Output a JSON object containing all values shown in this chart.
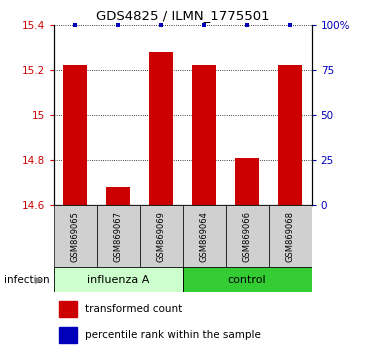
{
  "title": "GDS4825 / ILMN_1775501",
  "samples": [
    "GSM869065",
    "GSM869067",
    "GSM869069",
    "GSM869064",
    "GSM869066",
    "GSM869068"
  ],
  "transformed_counts": [
    15.22,
    14.68,
    15.28,
    15.22,
    14.81,
    15.22
  ],
  "percentile_ranks": [
    100,
    100,
    100,
    100,
    100,
    100
  ],
  "bar_color": "#CC0000",
  "dot_color": "#0000BB",
  "y_min": 14.6,
  "y_max": 15.4,
  "y_ticks": [
    14.6,
    14.8,
    15.0,
    15.2,
    15.4
  ],
  "y_tick_labels": [
    "14.6",
    "14.8",
    "15",
    "15.2",
    "15.4"
  ],
  "right_y_ticks_pct": [
    0,
    25,
    50,
    75,
    100
  ],
  "right_y_tick_labels": [
    "0",
    "25",
    "50",
    "75",
    "100%"
  ],
  "tick_color_left": "#CC0000",
  "tick_color_right": "#0000BB",
  "bar_width": 0.55,
  "influenza_color": "#CCFFCC",
  "control_color": "#33CC33",
  "sample_box_color": "#D0D0D0",
  "infection_label": "infection",
  "legend_red_label": "transformed count",
  "legend_blue_label": "percentile rank within the sample"
}
